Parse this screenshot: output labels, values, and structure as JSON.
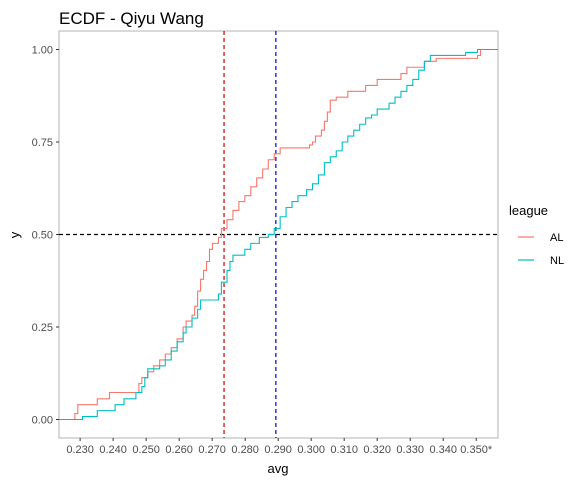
{
  "chart_data": {
    "type": "line",
    "step": true,
    "title": "ECDF - Qiyu Wang",
    "xlabel": "avg",
    "ylabel": "y",
    "xlim": [
      0.2236,
      0.3566
    ],
    "ylim": [
      -0.05,
      1.05
    ],
    "x_ticks": [
      {
        "value": 0.23,
        "label": "0.230"
      },
      {
        "value": 0.24,
        "label": "0.240"
      },
      {
        "value": 0.25,
        "label": "0.250"
      },
      {
        "value": 0.26,
        "label": "0.260"
      },
      {
        "value": 0.27,
        "label": "0.270"
      },
      {
        "value": 0.28,
        "label": "0.280"
      },
      {
        "value": 0.29,
        "label": "0.290"
      },
      {
        "value": 0.3,
        "label": "0.300"
      },
      {
        "value": 0.31,
        "label": "0.310"
      },
      {
        "value": 0.32,
        "label": "0.320"
      },
      {
        "value": 0.33,
        "label": "0.330"
      },
      {
        "value": 0.34,
        "label": "0.340"
      },
      {
        "value": 0.35,
        "label": "0.350*"
      }
    ],
    "y_ticks": [
      {
        "value": 0.0,
        "label": "0.00"
      },
      {
        "value": 0.25,
        "label": "0.25"
      },
      {
        "value": 0.5,
        "label": "0.50"
      },
      {
        "value": 0.75,
        "label": "0.75"
      },
      {
        "value": 1.0,
        "label": "1.00"
      }
    ],
    "grid": false,
    "legend_title": "league",
    "legend_position": "right",
    "series": [
      {
        "name": "AL",
        "color": "#F8766D",
        "points": [
          [
            0.2236,
            0.0
          ],
          [
            0.2284,
            0.016
          ],
          [
            0.2293,
            0.04
          ],
          [
            0.2352,
            0.056
          ],
          [
            0.2389,
            0.073
          ],
          [
            0.2478,
            0.097
          ],
          [
            0.2487,
            0.113
          ],
          [
            0.2505,
            0.129
          ],
          [
            0.2523,
            0.145
          ],
          [
            0.2541,
            0.161
          ],
          [
            0.2558,
            0.177
          ],
          [
            0.2576,
            0.194
          ],
          [
            0.2594,
            0.218
          ],
          [
            0.2612,
            0.25
          ],
          [
            0.2621,
            0.266
          ],
          [
            0.2639,
            0.282
          ],
          [
            0.2647,
            0.306
          ],
          [
            0.2656,
            0.347
          ],
          [
            0.2665,
            0.379
          ],
          [
            0.2674,
            0.403
          ],
          [
            0.2683,
            0.427
          ],
          [
            0.2692,
            0.46
          ],
          [
            0.2701,
            0.476
          ],
          [
            0.2719,
            0.492
          ],
          [
            0.2728,
            0.516
          ],
          [
            0.2745,
            0.54
          ],
          [
            0.2763,
            0.565
          ],
          [
            0.2781,
            0.589
          ],
          [
            0.2799,
            0.605
          ],
          [
            0.2817,
            0.629
          ],
          [
            0.2835,
            0.653
          ],
          [
            0.2853,
            0.677
          ],
          [
            0.287,
            0.702
          ],
          [
            0.2888,
            0.718
          ],
          [
            0.2906,
            0.734
          ],
          [
            0.2995,
            0.742
          ],
          [
            0.3004,
            0.75
          ],
          [
            0.3013,
            0.766
          ],
          [
            0.3031,
            0.782
          ],
          [
            0.304,
            0.806
          ],
          [
            0.3049,
            0.831
          ],
          [
            0.3058,
            0.863
          ],
          [
            0.3076,
            0.871
          ],
          [
            0.3111,
            0.887
          ],
          [
            0.3165,
            0.903
          ],
          [
            0.32,
            0.919
          ],
          [
            0.3272,
            0.935
          ],
          [
            0.329,
            0.952
          ],
          [
            0.3343,
            0.968
          ],
          [
            0.3379,
            0.976
          ],
          [
            0.3504,
            0.984
          ],
          [
            0.3513,
            1.0
          ],
          [
            0.3566,
            1.0
          ]
        ]
      },
      {
        "name": "NL",
        "color": "#00BFC4",
        "points": [
          [
            0.2236,
            0.0
          ],
          [
            0.2307,
            0.008
          ],
          [
            0.2352,
            0.024
          ],
          [
            0.2406,
            0.04
          ],
          [
            0.2433,
            0.056
          ],
          [
            0.2469,
            0.073
          ],
          [
            0.2487,
            0.089
          ],
          [
            0.2496,
            0.113
          ],
          [
            0.2505,
            0.137
          ],
          [
            0.2541,
            0.145
          ],
          [
            0.2558,
            0.161
          ],
          [
            0.2576,
            0.185
          ],
          [
            0.2594,
            0.21
          ],
          [
            0.2612,
            0.234
          ],
          [
            0.2621,
            0.25
          ],
          [
            0.2639,
            0.274
          ],
          [
            0.2656,
            0.298
          ],
          [
            0.2665,
            0.323
          ],
          [
            0.2719,
            0.339
          ],
          [
            0.2728,
            0.355
          ],
          [
            0.2728,
            0.371
          ],
          [
            0.2745,
            0.403
          ],
          [
            0.2754,
            0.427
          ],
          [
            0.2763,
            0.444
          ],
          [
            0.2799,
            0.46
          ],
          [
            0.2817,
            0.476
          ],
          [
            0.2843,
            0.492
          ],
          [
            0.287,
            0.5
          ],
          [
            0.2888,
            0.516
          ],
          [
            0.2906,
            0.548
          ],
          [
            0.2924,
            0.573
          ],
          [
            0.2942,
            0.589
          ],
          [
            0.296,
            0.605
          ],
          [
            0.2986,
            0.621
          ],
          [
            0.3004,
            0.637
          ],
          [
            0.3022,
            0.661
          ],
          [
            0.304,
            0.694
          ],
          [
            0.3058,
            0.71
          ],
          [
            0.3076,
            0.726
          ],
          [
            0.3094,
            0.75
          ],
          [
            0.3111,
            0.766
          ],
          [
            0.3129,
            0.782
          ],
          [
            0.3147,
            0.798
          ],
          [
            0.3165,
            0.815
          ],
          [
            0.3183,
            0.823
          ],
          [
            0.32,
            0.839
          ],
          [
            0.3236,
            0.855
          ],
          [
            0.3254,
            0.871
          ],
          [
            0.3272,
            0.887
          ],
          [
            0.329,
            0.903
          ],
          [
            0.3308,
            0.919
          ],
          [
            0.3326,
            0.944
          ],
          [
            0.3343,
            0.968
          ],
          [
            0.3361,
            0.984
          ],
          [
            0.3468,
            0.992
          ],
          [
            0.3504,
            1.0
          ],
          [
            0.3566,
            1.0
          ]
        ]
      }
    ],
    "reference_lines": [
      {
        "orientation": "horizontal",
        "y": 0.5,
        "color": "#000000",
        "dashed": true
      },
      {
        "orientation": "vertical",
        "x": 0.2736,
        "color": "#CC0000",
        "dashed": true
      },
      {
        "orientation": "vertical",
        "x": 0.2893,
        "color": "#0000CC",
        "dashed": true
      }
    ]
  }
}
